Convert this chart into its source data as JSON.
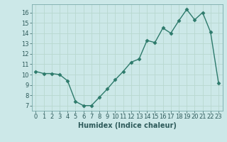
{
  "x": [
    0,
    1,
    2,
    3,
    4,
    5,
    6,
    7,
    8,
    9,
    10,
    11,
    12,
    13,
    14,
    15,
    16,
    17,
    18,
    19,
    20,
    21,
    22,
    23
  ],
  "y": [
    10.3,
    10.1,
    10.1,
    10.0,
    9.4,
    7.4,
    7.0,
    7.0,
    7.8,
    8.6,
    9.5,
    10.3,
    11.2,
    11.5,
    13.3,
    13.1,
    14.5,
    14.0,
    15.2,
    16.3,
    15.3,
    16.0,
    14.1,
    9.2
  ],
  "line_color": "#2d7a6b",
  "marker": "D",
  "markersize": 2.5,
  "linewidth": 1.0,
  "xlabel": "Humidex (Indice chaleur)",
  "xlabel_fontsize": 7,
  "xlim": [
    -0.5,
    23.5
  ],
  "ylim": [
    6.5,
    16.8
  ],
  "yticks": [
    7,
    8,
    9,
    10,
    11,
    12,
    13,
    14,
    15,
    16
  ],
  "xticks": [
    0,
    1,
    2,
    3,
    4,
    5,
    6,
    7,
    8,
    9,
    10,
    11,
    12,
    13,
    14,
    15,
    16,
    17,
    18,
    19,
    20,
    21,
    22,
    23
  ],
  "background_color": "#cce8e8",
  "grid_color": "#b8d8d0",
  "tick_fontsize": 6,
  "tick_color": "#2d5a5a",
  "label_color": "#2d5a5a"
}
